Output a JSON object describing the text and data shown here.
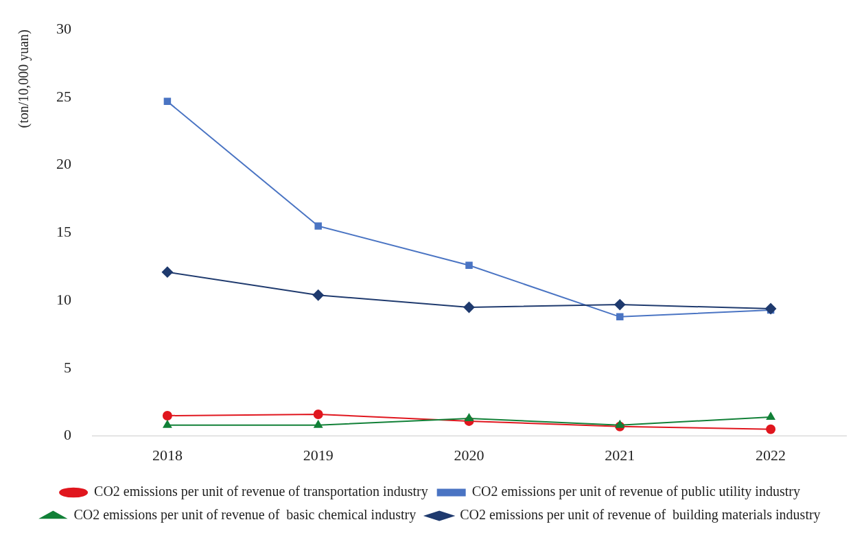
{
  "chart_data": {
    "type": "line",
    "ylabel": "(ton/10,000 yuan)",
    "categories": [
      "2018",
      "2019",
      "2020",
      "2021",
      "2022"
    ],
    "series": [
      {
        "name": "CO2 emissions per unit of revenue of transportation industry",
        "color": "#e0161e",
        "marker": "circle",
        "values": [
          1.5,
          1.6,
          1.1,
          0.7,
          0.5
        ]
      },
      {
        "name": "CO2 emissions per unit of revenue of public utility industry",
        "color": "#4a74c3",
        "marker": "square",
        "values": [
          24.7,
          15.5,
          12.6,
          8.8,
          9.3
        ]
      },
      {
        "name": "CO2 emissions per unit of revenue of  basic chemical industry",
        "color": "#118037",
        "marker": "triangle",
        "values": [
          0.8,
          0.8,
          1.3,
          0.8,
          1.4
        ]
      },
      {
        "name": "CO2 emissions per unit of revenue of  building materials industry",
        "color": "#1f3a6e",
        "marker": "diamond",
        "values": [
          12.1,
          10.4,
          9.5,
          9.7,
          9.4
        ]
      }
    ],
    "ylim": [
      0,
      30
    ],
    "yticks": [
      0,
      5,
      10,
      15,
      20,
      25,
      30
    ],
    "grid": false,
    "legend": "bottom",
    "line_style": "solid"
  }
}
